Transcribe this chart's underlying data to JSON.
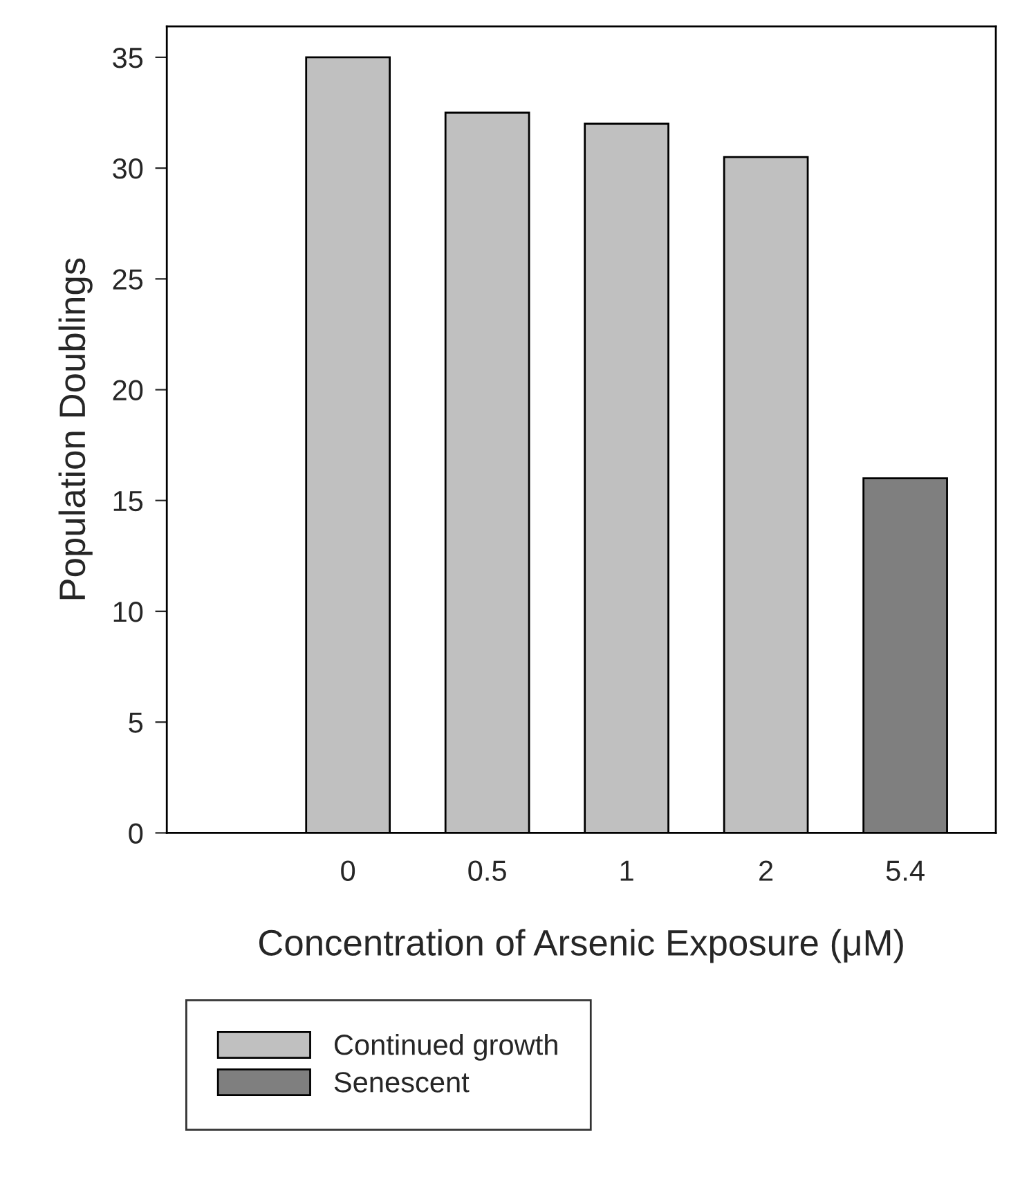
{
  "chart_data": {
    "type": "bar",
    "xlabel": "Concentration of Arsenic Exposure (μM)",
    "ylabel": "Population Doublings",
    "categories": [
      "0",
      "0.5",
      "1",
      "2",
      "5.4"
    ],
    "series": [
      {
        "name": "Continued growth",
        "color": "#c0c0c0",
        "values": [
          35,
          32.5,
          32,
          30.5,
          null
        ]
      },
      {
        "name": "Senescent",
        "color": "#7f7f7f",
        "values": [
          null,
          null,
          null,
          null,
          16
        ]
      }
    ],
    "ylim": [
      0,
      36.4
    ],
    "yticks": [
      0,
      5,
      10,
      15,
      20,
      25,
      30,
      35
    ],
    "grid": false,
    "legend": "bottom left"
  }
}
